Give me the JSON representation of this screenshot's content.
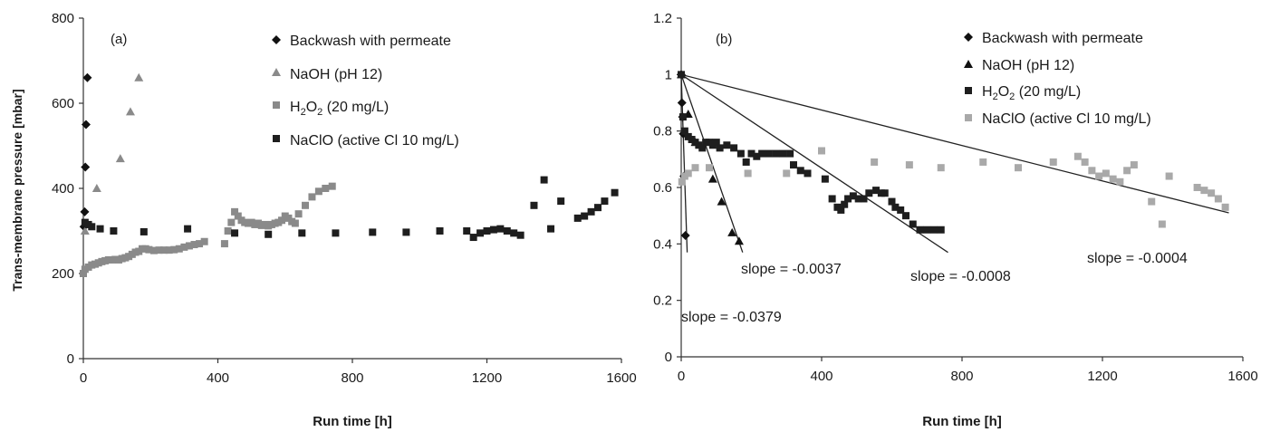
{
  "colors": {
    "black": "#111111",
    "dark": "#1e1e1e",
    "gray": "#8a8a8a",
    "lightgray": "#a9a9a9"
  },
  "chart_data": [
    {
      "type": "scatter",
      "panel_label": "(a)",
      "xlabel": "Run time [h]",
      "ylabel": "Trans-membrane pressure [mbar]",
      "xlim": [
        0,
        1600
      ],
      "ylim": [
        0,
        800
      ],
      "xticks": [
        "0",
        "400",
        "800",
        "1200",
        "1600"
      ],
      "yticks": [
        "0",
        "200",
        "400",
        "600",
        "800"
      ],
      "legend_position": "top-right",
      "legend": [
        {
          "label": "Backwash with permeate",
          "marker": "diamond",
          "color": "#111111"
        },
        {
          "label": "NaOH (pH 12)",
          "marker": "triangle",
          "color": "#8a8a8a"
        },
        {
          "label_main": "H",
          "label_sub1": "2",
          "label_mid": "O",
          "label_sub2": "2",
          "label_rest": " (20 mg/L)",
          "marker": "square",
          "color": "#8a8a8a"
        },
        {
          "label": "NaClO (active Cl 10 mg/L)",
          "marker": "square",
          "color": "#1e1e1e"
        }
      ],
      "series": [
        {
          "marker": "diamond",
          "color": "#111111",
          "points": [
            [
              2,
              310
            ],
            [
              4,
              345
            ],
            [
              6,
              450
            ],
            [
              8,
              550
            ],
            [
              12,
              660
            ]
          ]
        },
        {
          "marker": "triangle",
          "color": "#8a8a8a",
          "points": [
            [
              5,
              300
            ],
            [
              40,
              400
            ],
            [
              110,
              470
            ],
            [
              140,
              580
            ],
            [
              165,
              660
            ]
          ]
        },
        {
          "marker": "square",
          "color": "#8a8a8a",
          "points": [
            [
              0,
              200
            ],
            [
              5,
              210
            ],
            [
              15,
              215
            ],
            [
              25,
              220
            ],
            [
              35,
              222
            ],
            [
              45,
              225
            ],
            [
              55,
              228
            ],
            [
              65,
              230
            ],
            [
              75,
              232
            ],
            [
              85,
              232
            ],
            [
              95,
              233
            ],
            [
              105,
              232
            ],
            [
              115,
              235
            ],
            [
              125,
              237
            ],
            [
              135,
              240
            ],
            [
              145,
              245
            ],
            [
              155,
              250
            ],
            [
              165,
              252
            ],
            [
              175,
              258
            ],
            [
              185,
              258
            ],
            [
              195,
              256
            ],
            [
              210,
              254
            ],
            [
              225,
              255
            ],
            [
              240,
              255
            ],
            [
              255,
              255
            ],
            [
              270,
              256
            ],
            [
              285,
              258
            ],
            [
              300,
              262
            ],
            [
              315,
              265
            ],
            [
              330,
              268
            ],
            [
              345,
              270
            ],
            [
              360,
              275
            ],
            [
              420,
              270
            ],
            [
              430,
              300
            ],
            [
              440,
              320
            ],
            [
              450,
              345
            ],
            [
              460,
              335
            ],
            [
              470,
              325
            ],
            [
              480,
              320
            ],
            [
              490,
              318
            ],
            [
              500,
              320
            ],
            [
              510,
              315
            ],
            [
              520,
              318
            ],
            [
              530,
              313
            ],
            [
              540,
              315
            ],
            [
              550,
              312
            ],
            [
              560,
              315
            ],
            [
              570,
              318
            ],
            [
              580,
              320
            ],
            [
              590,
              325
            ],
            [
              600,
              335
            ],
            [
              610,
              330
            ],
            [
              620,
              322
            ],
            [
              630,
              318
            ],
            [
              640,
              340
            ],
            [
              660,
              360
            ],
            [
              680,
              380
            ],
            [
              700,
              393
            ],
            [
              720,
              400
            ],
            [
              740,
              405
            ]
          ]
        },
        {
          "marker": "square",
          "color": "#1e1e1e",
          "points": [
            [
              5,
              320
            ],
            [
              15,
              315
            ],
            [
              25,
              310
            ],
            [
              50,
              305
            ],
            [
              90,
              300
            ],
            [
              180,
              298
            ],
            [
              310,
              305
            ],
            [
              450,
              295
            ],
            [
              550,
              292
            ],
            [
              650,
              295
            ],
            [
              750,
              295
            ],
            [
              860,
              297
            ],
            [
              960,
              297
            ],
            [
              1060,
              300
            ],
            [
              1140,
              300
            ],
            [
              1160,
              285
            ],
            [
              1180,
              295
            ],
            [
              1200,
              300
            ],
            [
              1220,
              303
            ],
            [
              1240,
              305
            ],
            [
              1260,
              300
            ],
            [
              1280,
              295
            ],
            [
              1300,
              290
            ],
            [
              1340,
              360
            ],
            [
              1370,
              420
            ],
            [
              1390,
              305
            ],
            [
              1420,
              370
            ],
            [
              1470,
              330
            ],
            [
              1490,
              335
            ],
            [
              1510,
              345
            ],
            [
              1530,
              355
            ],
            [
              1550,
              370
            ],
            [
              1580,
              390
            ]
          ]
        }
      ]
    },
    {
      "type": "scatter",
      "panel_label": "(b)",
      "xlabel": "Run time [h]",
      "ylabel": "",
      "xlim": [
        0,
        1600
      ],
      "ylim": [
        0,
        1.2
      ],
      "xticks": [
        "0",
        "400",
        "800",
        "1200",
        "1600"
      ],
      "yticks": [
        "0",
        "0.2",
        "0.4",
        "0.6",
        "0.8",
        "1",
        "1.2"
      ],
      "legend_position": "top-center",
      "legend": [
        {
          "label": "Backwash with permeate",
          "marker": "diamond",
          "color": "#111111"
        },
        {
          "label": "NaOH (pH 12)",
          "marker": "triangle",
          "color": "#111111"
        },
        {
          "label_main": "H",
          "label_sub1": "2",
          "label_mid": "O",
          "label_sub2": "2",
          "label_rest": "  (20 mg/L)",
          "marker": "square",
          "color": "#1e1e1e"
        },
        {
          "label": "NaClO (active Cl 10 mg/L)",
          "marker": "square",
          "color": "#a9a9a9"
        }
      ],
      "series": [
        {
          "marker": "diamond",
          "color": "#111111",
          "points": [
            [
              0,
              1.0
            ],
            [
              2,
              0.9
            ],
            [
              4,
              0.85
            ],
            [
              6,
              0.79
            ],
            [
              8,
              0.64
            ],
            [
              12,
              0.43
            ]
          ]
        },
        {
          "marker": "triangle",
          "color": "#111111",
          "points": [
            [
              0,
              1.0
            ],
            [
              20,
              0.86
            ],
            [
              40,
              0.76
            ],
            [
              90,
              0.63
            ],
            [
              115,
              0.55
            ],
            [
              145,
              0.44
            ],
            [
              165,
              0.41
            ]
          ]
        },
        {
          "marker": "square",
          "color": "#1e1e1e",
          "points": [
            [
              0,
              1.0
            ],
            [
              5,
              0.85
            ],
            [
              10,
              0.8
            ],
            [
              20,
              0.78
            ],
            [
              30,
              0.77
            ],
            [
              40,
              0.76
            ],
            [
              50,
              0.75
            ],
            [
              60,
              0.74
            ],
            [
              70,
              0.76
            ],
            [
              80,
              0.76
            ],
            [
              90,
              0.75
            ],
            [
              100,
              0.76
            ],
            [
              110,
              0.74
            ],
            [
              130,
              0.75
            ],
            [
              150,
              0.74
            ],
            [
              170,
              0.72
            ],
            [
              185,
              0.69
            ],
            [
              200,
              0.72
            ],
            [
              215,
              0.71
            ],
            [
              230,
              0.72
            ],
            [
              250,
              0.72
            ],
            [
              270,
              0.72
            ],
            [
              290,
              0.72
            ],
            [
              310,
              0.72
            ],
            [
              320,
              0.68
            ],
            [
              340,
              0.66
            ],
            [
              360,
              0.65
            ],
            [
              410,
              0.63
            ],
            [
              430,
              0.56
            ],
            [
              445,
              0.53
            ],
            [
              455,
              0.52
            ],
            [
              465,
              0.54
            ],
            [
              475,
              0.56
            ],
            [
              490,
              0.57
            ],
            [
              505,
              0.56
            ],
            [
              520,
              0.56
            ],
            [
              535,
              0.58
            ],
            [
              555,
              0.59
            ],
            [
              570,
              0.58
            ],
            [
              580,
              0.58
            ],
            [
              600,
              0.55
            ],
            [
              610,
              0.53
            ],
            [
              625,
              0.52
            ],
            [
              640,
              0.5
            ],
            [
              660,
              0.47
            ],
            [
              680,
              0.45
            ],
            [
              700,
              0.45
            ],
            [
              720,
              0.45
            ],
            [
              740,
              0.45
            ]
          ]
        },
        {
          "marker": "square",
          "color": "#a9a9a9",
          "points": [
            [
              2,
              0.62
            ],
            [
              10,
              0.64
            ],
            [
              20,
              0.65
            ],
            [
              40,
              0.67
            ],
            [
              80,
              0.67
            ],
            [
              190,
              0.65
            ],
            [
              300,
              0.65
            ],
            [
              400,
              0.73
            ],
            [
              550,
              0.69
            ],
            [
              650,
              0.68
            ],
            [
              740,
              0.67
            ],
            [
              860,
              0.69
            ],
            [
              960,
              0.67
            ],
            [
              1060,
              0.69
            ],
            [
              1130,
              0.71
            ],
            [
              1150,
              0.69
            ],
            [
              1170,
              0.66
            ],
            [
              1190,
              0.64
            ],
            [
              1210,
              0.65
            ],
            [
              1230,
              0.63
            ],
            [
              1250,
              0.62
            ],
            [
              1270,
              0.66
            ],
            [
              1290,
              0.68
            ],
            [
              1340,
              0.55
            ],
            [
              1370,
              0.47
            ],
            [
              1390,
              0.64
            ],
            [
              1470,
              0.6
            ],
            [
              1490,
              0.59
            ],
            [
              1510,
              0.58
            ],
            [
              1530,
              0.56
            ],
            [
              1550,
              0.53
            ]
          ]
        }
      ],
      "trendlines": [
        {
          "slope_label": "slope = -0.0379",
          "from": [
            0,
            1.0
          ],
          "to": [
            17,
            0.37
          ]
        },
        {
          "slope_label": "slope = -0.0037",
          "from": [
            0,
            1.0
          ],
          "to": [
            175,
            0.37
          ]
        },
        {
          "slope_label": "slope = -0.0008",
          "from": [
            0,
            1.0
          ],
          "to": [
            760,
            0.37
          ]
        },
        {
          "slope_label": "slope = -0.0004",
          "from": [
            0,
            1.0
          ],
          "to": [
            1560,
            0.51
          ]
        }
      ]
    }
  ]
}
